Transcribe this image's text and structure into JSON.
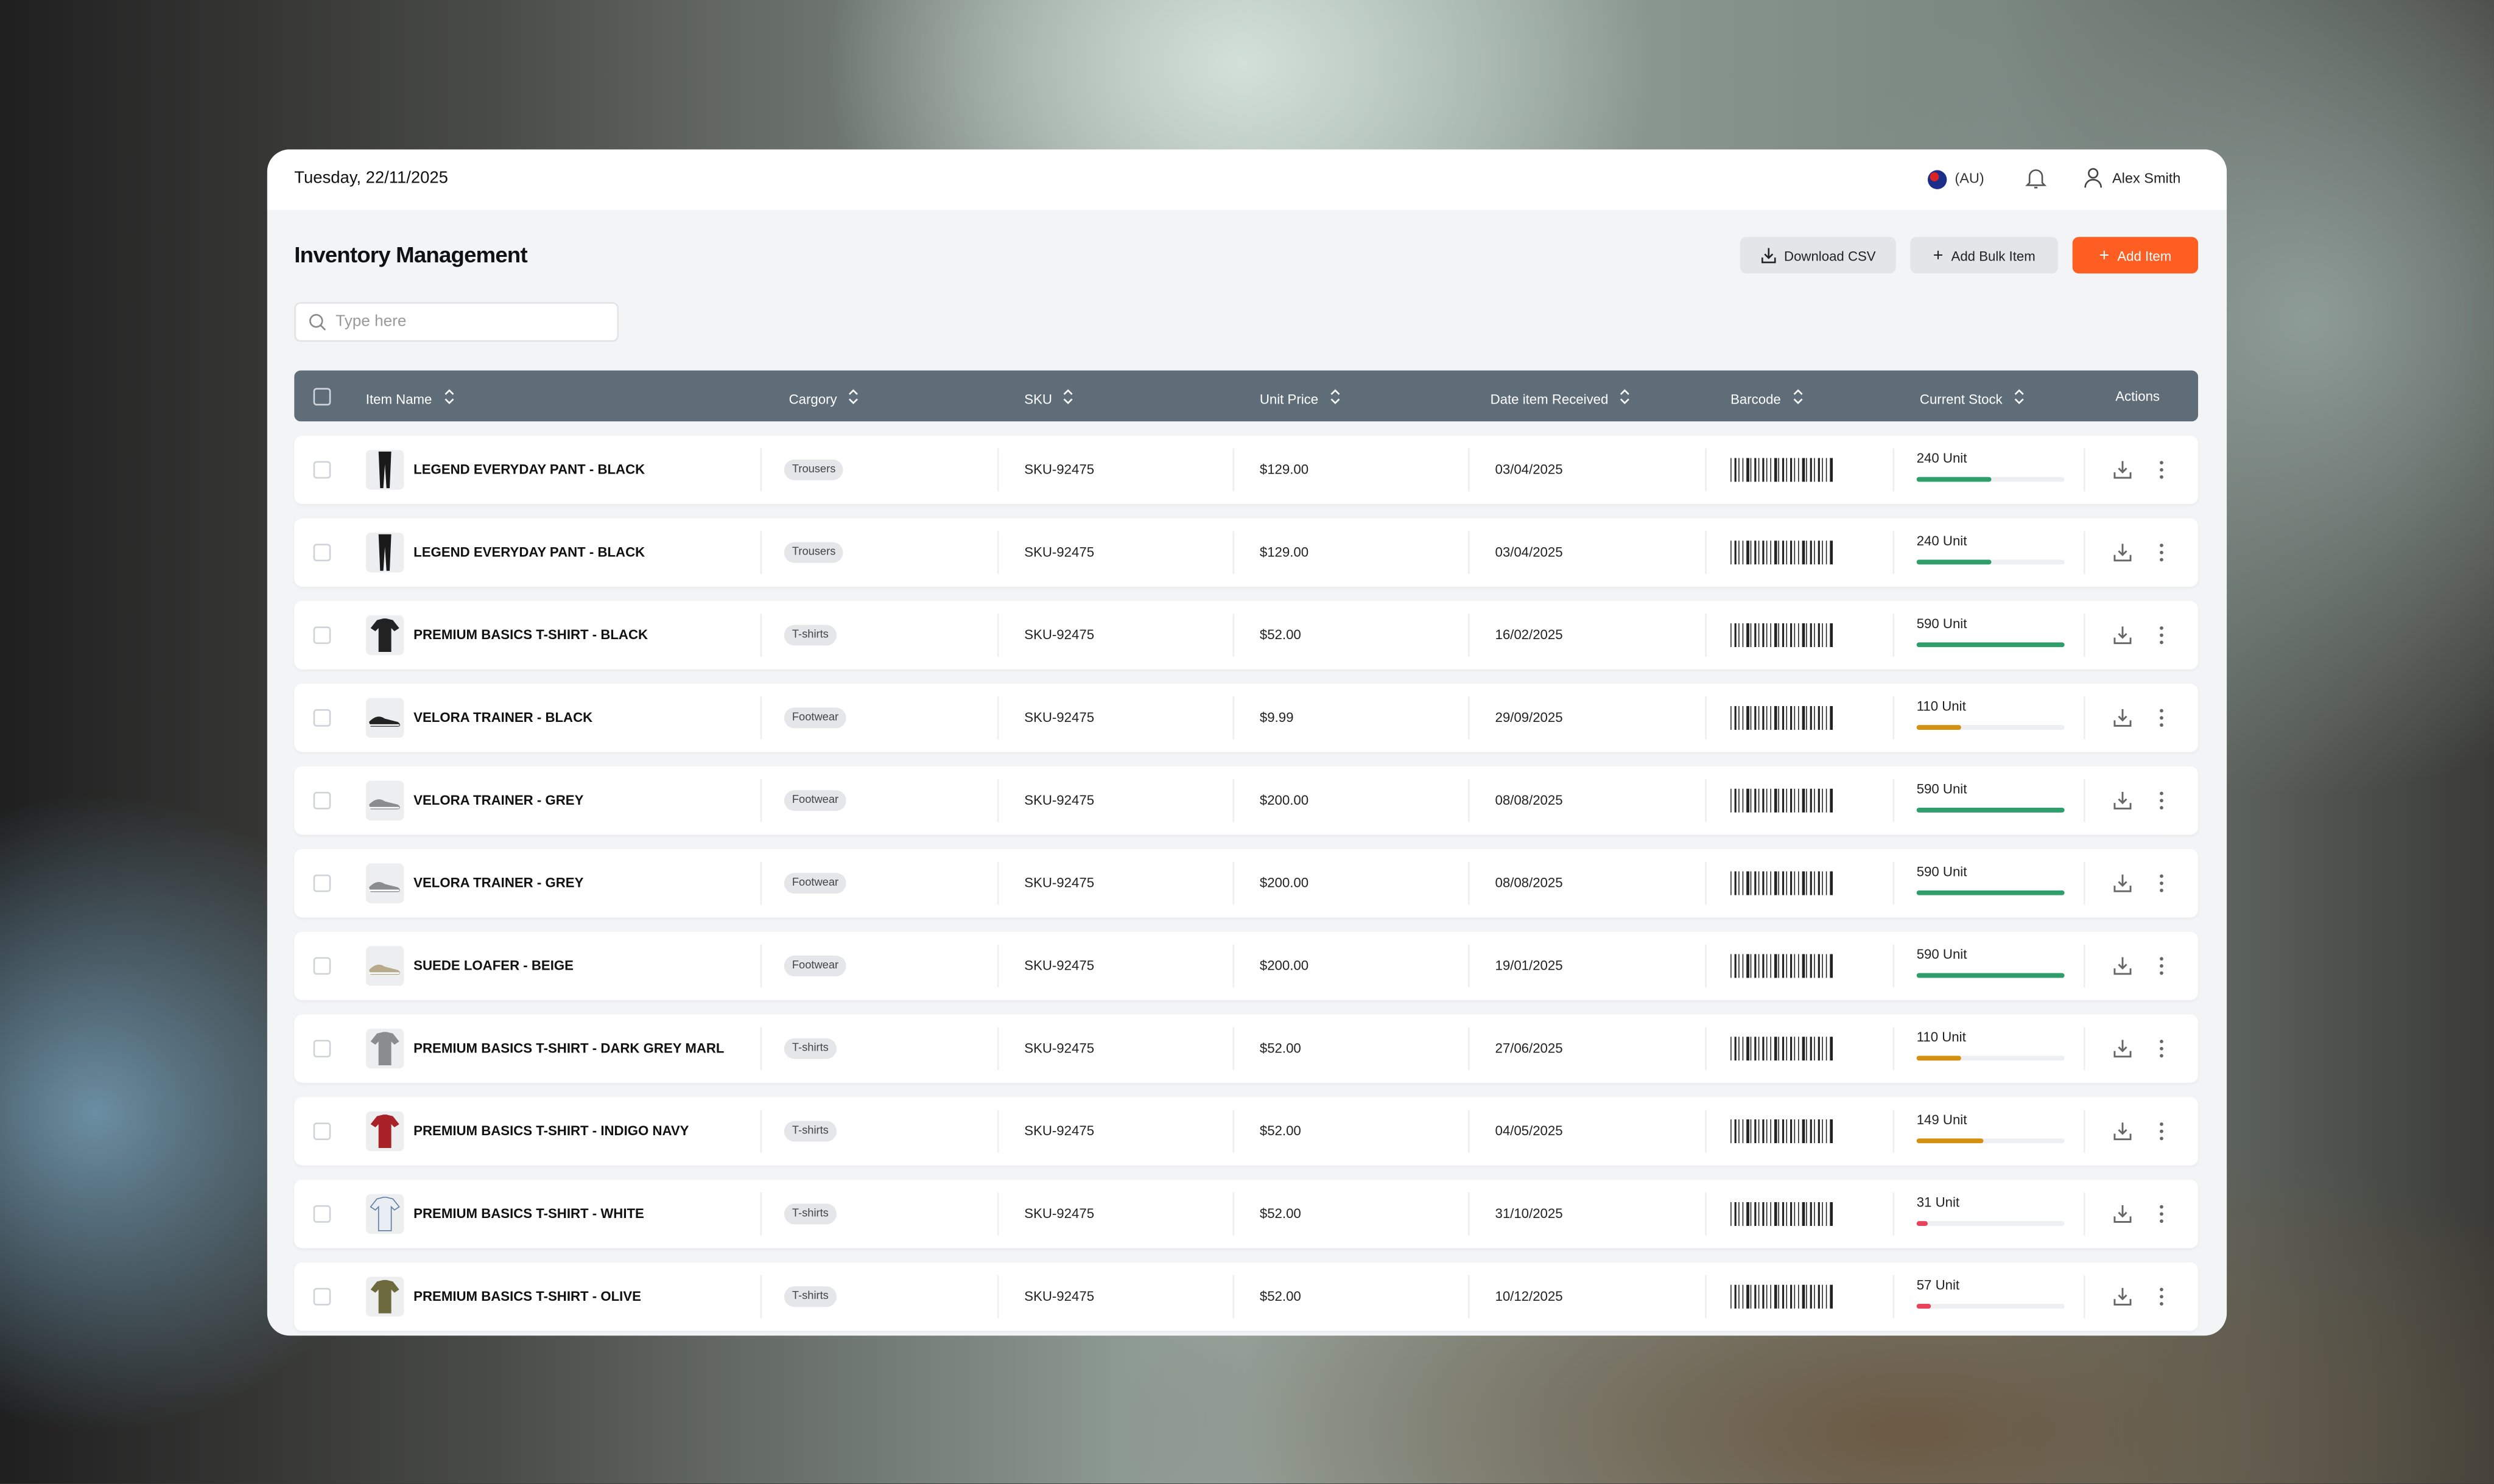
{
  "header": {
    "date": "Tuesday, 22/11/2025",
    "locale": "(AU)",
    "user": "Alex Smith"
  },
  "page": {
    "title": "Inventory Management",
    "download_csv": "Download CSV",
    "add_bulk": "Add Bulk Item",
    "add_item": "Add Item",
    "search_placeholder": "Type here"
  },
  "colors": {
    "accent": "#ff5e22",
    "header": "#5f6d79",
    "stock_high": "#2e9e6a",
    "stock_mid": "#d4900e",
    "stock_low": "#e8435a"
  },
  "columns": [
    "Item Name",
    "Cargory",
    "SKU",
    "Unit Price",
    "Date item Received",
    "Barcode",
    "Current Stock",
    "Actions"
  ],
  "rows": [
    {
      "name": "LEGEND EVERYDAY PANT - BLACK",
      "category": "Trousers",
      "sku": "SKU-92475",
      "price": "$129.00",
      "date": "03/04/2025",
      "stock": "240 Unit",
      "level": 0.5,
      "status": "high",
      "thumb": "pant-black"
    },
    {
      "name": "LEGEND EVERYDAY PANT - BLACK",
      "category": "Trousers",
      "sku": "SKU-92475",
      "price": "$129.00",
      "date": "03/04/2025",
      "stock": "240 Unit",
      "level": 0.5,
      "status": "high",
      "thumb": "pant-black"
    },
    {
      "name": "PREMIUM BASICS T-SHIRT - BLACK",
      "category": "T-shirts",
      "sku": "SKU-92475",
      "price": "$52.00",
      "date": "16/02/2025",
      "stock": "590 Unit",
      "level": 1.0,
      "status": "high",
      "thumb": "tshirt-black"
    },
    {
      "name": "VELORA TRAINER - BLACK",
      "category": "Footwear",
      "sku": "SKU-92475",
      "price": "$9.99",
      "date": "29/09/2025",
      "stock": "110 Unit",
      "level": 0.3,
      "status": "mid",
      "thumb": "shoe-black"
    },
    {
      "name": "VELORA TRAINER - GREY",
      "category": "Footwear",
      "sku": "SKU-92475",
      "price": "$200.00",
      "date": "08/08/2025",
      "stock": "590 Unit",
      "level": 1.0,
      "status": "high",
      "thumb": "shoe-grey"
    },
    {
      "name": "VELORA TRAINER - GREY",
      "category": "Footwear",
      "sku": "SKU-92475",
      "price": "$200.00",
      "date": "08/08/2025",
      "stock": "590 Unit",
      "level": 1.0,
      "status": "high",
      "thumb": "shoe-grey"
    },
    {
      "name": "SUEDE LOAFER - BEIGE",
      "category": "Footwear",
      "sku": "SKU-92475",
      "price": "$200.00",
      "date": "19/01/2025",
      "stock": "590 Unit",
      "level": 1.0,
      "status": "high",
      "thumb": "shoe-beige"
    },
    {
      "name": "PREMIUM BASICS T-SHIRT - DARK GREY MARL",
      "category": "T-shirts",
      "sku": "SKU-92475",
      "price": "$52.00",
      "date": "27/06/2025",
      "stock": "110 Unit",
      "level": 0.3,
      "status": "mid",
      "thumb": "tshirt-grey"
    },
    {
      "name": "PREMIUM BASICS T-SHIRT - INDIGO NAVY",
      "category": "T-shirts",
      "sku": "SKU-92475",
      "price": "$52.00",
      "date": "04/05/2025",
      "stock": "149 Unit",
      "level": 0.45,
      "status": "mid",
      "thumb": "tshirt-red"
    },
    {
      "name": "PREMIUM BASICS T-SHIRT - WHITE",
      "category": "T-shirts",
      "sku": "SKU-92475",
      "price": "$52.00",
      "date": "31/10/2025",
      "stock": "31 Unit",
      "level": 0.08,
      "status": "low",
      "thumb": "tshirt-white"
    },
    {
      "name": "PREMIUM BASICS T-SHIRT - OLIVE",
      "category": "T-shirts",
      "sku": "SKU-92475",
      "price": "$52.00",
      "date": "10/12/2025",
      "stock": "57 Unit",
      "level": 0.1,
      "status": "low",
      "thumb": "tshirt-olive"
    }
  ]
}
